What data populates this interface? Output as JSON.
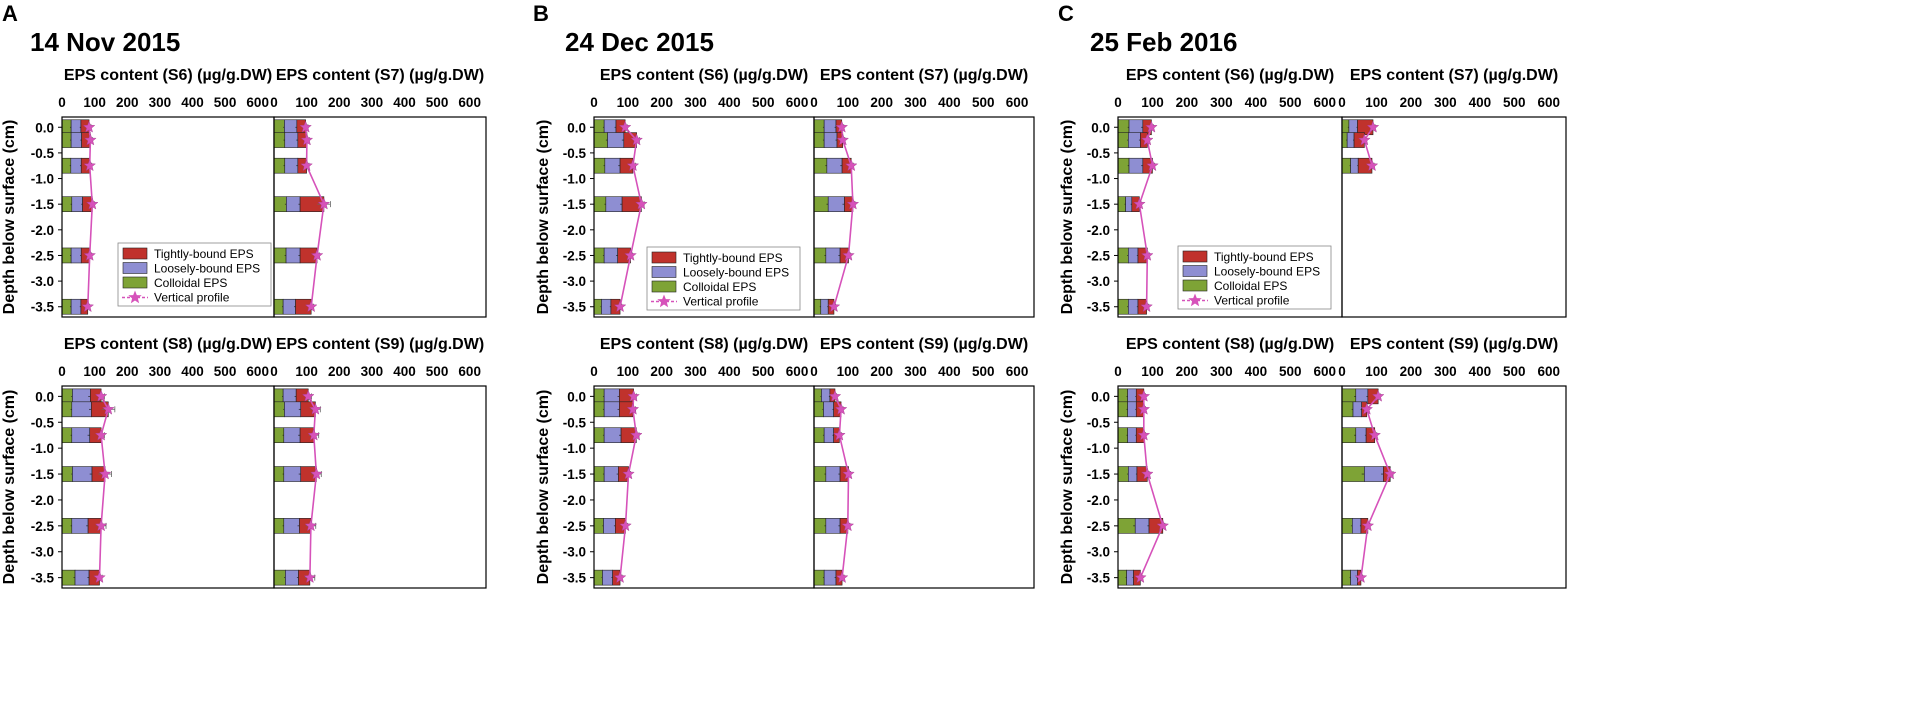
{
  "figure": {
    "depth_axis_label": "Depth below surface (cm)",
    "x_ticks": [
      0,
      100,
      200,
      300,
      400,
      500,
      600
    ],
    "y_ticks": [
      0.0,
      -0.5,
      -1.0,
      -1.5,
      -2.0,
      -2.5,
      -3.0,
      -3.5
    ],
    "y_tick_labels": [
      "0.0",
      "-0.5",
      "-1.0",
      "-1.5",
      "-2.0",
      "-2.5",
      "-3.0",
      "-3.5"
    ],
    "legend": [
      "Tightly-bound EPS",
      "Loosely-bound EPS",
      "Colloidal EPS",
      "Vertical profile"
    ],
    "colors": {
      "tb": "#c0322c",
      "lb": "#8e8ed2",
      "col": "#7ea336",
      "profile": "#d652ba",
      "star": "#d652ba",
      "edge": "#222222"
    }
  },
  "chart_data": [
    {
      "panel_letter": "A",
      "date": "14 Nov 2015",
      "type": "bar",
      "stacking": "horizontal-stacked",
      "xlim": [
        0,
        650
      ],
      "ylim": [
        -3.7,
        0.2
      ],
      "series_order": [
        "Colloidal EPS",
        "Loosely-bound EPS",
        "Tightly-bound EPS"
      ],
      "subplots": [
        {
          "station": "S6",
          "title": "EPS content (S6) (µg/g.DW)",
          "legend": true,
          "depths": [
            0.0,
            -0.25,
            -0.75,
            -1.5,
            -2.5,
            -3.5
          ],
          "colloidal": [
            28,
            28,
            27,
            30,
            28,
            28
          ],
          "loosely": [
            30,
            32,
            32,
            33,
            31,
            30
          ],
          "tightly": [
            25,
            27,
            26,
            30,
            26,
            21
          ],
          "total": [
            83,
            87,
            85,
            93,
            85,
            79
          ],
          "error": [
            6,
            6,
            6,
            6,
            6,
            5
          ]
        },
        {
          "station": "S7",
          "title": "EPS content (S7) (µg/g.DW)",
          "legend": false,
          "depths": [
            0.0,
            -0.25,
            -0.75,
            -1.5,
            -2.5,
            -3.5
          ],
          "colloidal": [
            32,
            33,
            33,
            38,
            37,
            28
          ],
          "loosely": [
            38,
            40,
            40,
            42,
            43,
            38
          ],
          "tightly": [
            27,
            28,
            27,
            73,
            52,
            48
          ],
          "total": [
            97,
            101,
            100,
            153,
            132,
            114
          ],
          "error": [
            7,
            7,
            7,
            20,
            7,
            7
          ]
        },
        {
          "station": "S8",
          "title": "EPS content (S8) (µg/g.DW)",
          "legend": false,
          "depths": [
            0.0,
            -0.25,
            -0.75,
            -1.5,
            -2.5,
            -3.5
          ],
          "colloidal": [
            32,
            30,
            30,
            32,
            30,
            40
          ],
          "loosely": [
            55,
            60,
            55,
            60,
            50,
            43
          ],
          "tightly": [
            33,
            52,
            35,
            40,
            40,
            32
          ],
          "total": [
            120,
            142,
            120,
            132,
            120,
            115
          ],
          "error": [
            10,
            20,
            10,
            20,
            15,
            8
          ]
        },
        {
          "station": "S9",
          "title": "EPS content (S9) (µg/g.DW)",
          "legend": false,
          "depths": [
            0.0,
            -0.25,
            -0.75,
            -1.5,
            -2.5,
            -3.5
          ],
          "colloidal": [
            28,
            32,
            30,
            30,
            30,
            35
          ],
          "loosely": [
            40,
            50,
            50,
            52,
            48,
            40
          ],
          "tightly": [
            37,
            45,
            42,
            48,
            35,
            35
          ],
          "total": [
            105,
            127,
            122,
            130,
            113,
            110
          ],
          "error": [
            10,
            15,
            15,
            15,
            15,
            15
          ]
        }
      ]
    },
    {
      "panel_letter": "B",
      "date": "24 Dec 2015",
      "type": "bar",
      "stacking": "horizontal-stacked",
      "xlim": [
        0,
        650
      ],
      "ylim": [
        -3.7,
        0.2
      ],
      "series_order": [
        "Colloidal EPS",
        "Loosely-bound EPS",
        "Tightly-bound EPS"
      ],
      "subplots": [
        {
          "station": "S6",
          "title": "EPS content (S6) (µg/g.DW)",
          "legend": true,
          "depths": [
            0.0,
            -0.25,
            -0.75,
            -1.5,
            -2.5,
            -3.5
          ],
          "colloidal": [
            30,
            40,
            32,
            35,
            30,
            22
          ],
          "loosely": [
            35,
            48,
            45,
            48,
            40,
            28
          ],
          "tightly": [
            27,
            38,
            38,
            57,
            38,
            27
          ],
          "total": [
            92,
            126,
            115,
            140,
            108,
            77
          ],
          "error": [
            6,
            8,
            8,
            8,
            6,
            5
          ]
        },
        {
          "station": "S7",
          "title": "EPS content (S7) (µg/g.DW)",
          "legend": false,
          "depths": [
            0.0,
            -0.25,
            -0.75,
            -1.5,
            -2.5,
            -3.5
          ],
          "colloidal": [
            30,
            30,
            38,
            42,
            35,
            20
          ],
          "loosely": [
            35,
            38,
            45,
            48,
            42,
            22
          ],
          "tightly": [
            17,
            17,
            27,
            25,
            25,
            17
          ],
          "total": [
            82,
            85,
            110,
            115,
            102,
            59
          ],
          "error": [
            6,
            6,
            6,
            6,
            6,
            5
          ]
        },
        {
          "station": "S8",
          "title": "EPS content (S8) (µg/g.DW)",
          "legend": false,
          "depths": [
            0.0,
            -0.25,
            -0.75,
            -1.5,
            -2.5,
            -3.5
          ],
          "colloidal": [
            30,
            30,
            30,
            30,
            28,
            25
          ],
          "loosely": [
            45,
            45,
            50,
            42,
            35,
            30
          ],
          "tightly": [
            42,
            40,
            45,
            30,
            30,
            22
          ],
          "total": [
            117,
            115,
            125,
            102,
            93,
            77
          ],
          "error": [
            8,
            8,
            8,
            6,
            6,
            6
          ]
        },
        {
          "station": "S9",
          "title": "EPS content (S9) (µg/g.DW)",
          "legend": false,
          "depths": [
            0.0,
            -0.25,
            -0.75,
            -1.5,
            -2.5,
            -3.5
          ],
          "colloidal": [
            22,
            28,
            30,
            35,
            35,
            30
          ],
          "loosely": [
            25,
            30,
            28,
            42,
            42,
            35
          ],
          "tightly": [
            15,
            22,
            17,
            25,
            23,
            18
          ],
          "total": [
            62,
            80,
            75,
            102,
            100,
            83
          ],
          "error": [
            5,
            6,
            6,
            6,
            6,
            6
          ]
        }
      ]
    },
    {
      "panel_letter": "C",
      "date": "25 Feb 2016",
      "type": "bar",
      "stacking": "horizontal-stacked",
      "xlim": [
        0,
        650
      ],
      "ylim": [
        -3.7,
        0.2
      ],
      "series_order": [
        "Colloidal EPS",
        "Loosely-bound EPS",
        "Tightly-bound EPS"
      ],
      "subplots": [
        {
          "station": "S6",
          "title": "EPS content (S6) (µg/g.DW)",
          "legend": true,
          "depths": [
            0.0,
            -0.25,
            -0.75,
            -1.5,
            -2.5,
            -3.5
          ],
          "colloidal": [
            32,
            30,
            32,
            22,
            30,
            30
          ],
          "loosely": [
            40,
            35,
            40,
            18,
            28,
            28
          ],
          "tightly": [
            25,
            20,
            28,
            22,
            27,
            25
          ],
          "total": [
            97,
            85,
            100,
            62,
            85,
            83
          ],
          "error": [
            6,
            6,
            6,
            5,
            6,
            6
          ]
        },
        {
          "station": "S7",
          "title": "EPS content (S7) (µg/g.DW)",
          "legend": false,
          "depths": [
            0.0,
            -0.25,
            -0.75
          ],
          "colloidal": [
            20,
            15,
            25
          ],
          "loosely": [
            25,
            20,
            22
          ],
          "tightly": [
            45,
            30,
            40
          ],
          "total": [
            90,
            65,
            87
          ],
          "error": [
            6,
            5,
            6
          ]
        },
        {
          "station": "S8",
          "title": "EPS content (S8) (µg/g.DW)",
          "legend": false,
          "depths": [
            0.0,
            -0.25,
            -0.75,
            -1.5,
            -2.5,
            -3.5
          ],
          "colloidal": [
            28,
            28,
            28,
            30,
            50,
            25
          ],
          "loosely": [
            25,
            25,
            25,
            25,
            40,
            20
          ],
          "tightly": [
            22,
            22,
            22,
            30,
            40,
            20
          ],
          "total": [
            75,
            75,
            75,
            85,
            130,
            65
          ],
          "error": [
            5,
            5,
            5,
            5,
            6,
            5
          ]
        },
        {
          "station": "S9",
          "title": "EPS content (S9) (µg/g.DW)",
          "legend": false,
          "depths": [
            0.0,
            -0.25,
            -0.75,
            -1.5,
            -2.5,
            -3.5
          ],
          "colloidal": [
            40,
            32,
            40,
            65,
            30,
            25
          ],
          "loosely": [
            35,
            25,
            30,
            55,
            25,
            20
          ],
          "tightly": [
            30,
            15,
            25,
            20,
            20,
            10
          ],
          "total": [
            105,
            72,
            95,
            140,
            75,
            55
          ],
          "error": [
            6,
            5,
            6,
            8,
            6,
            5
          ]
        }
      ]
    }
  ]
}
